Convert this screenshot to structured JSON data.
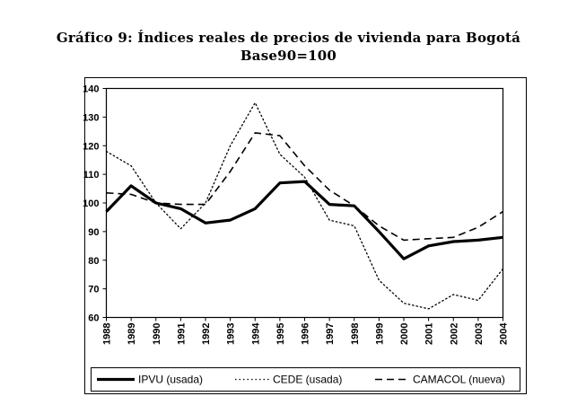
{
  "title_line1": "Gráfico 9: Índices reales de precios de vivienda para Bogotá",
  "title_line2": "Base90=100",
  "chart_data": {
    "type": "line",
    "title": "Gráfico 9: Índices reales de precios de vivienda para Bogotá",
    "subtitle": "Base90=100",
    "xlabel": "",
    "ylabel": "",
    "x": [
      "1988",
      "1989",
      "1990",
      "1991",
      "1992",
      "1993",
      "1994",
      "1995",
      "1996",
      "1997",
      "1998",
      "1999",
      "2000",
      "2001",
      "2002",
      "2003",
      "2004"
    ],
    "ylim": [
      60,
      140
    ],
    "yticks": [
      "60",
      "70",
      "80",
      "90",
      "100",
      "110",
      "120",
      "130",
      "140"
    ],
    "grid": false,
    "legend_position": "bottom",
    "series": [
      {
        "name": "IPVU (usada)",
        "style": "solid-thick",
        "color": "#000000",
        "values": [
          97,
          106,
          100,
          98,
          93,
          94,
          98,
          107,
          107.5,
          99.5,
          99,
          90,
          80.5,
          85,
          86.5,
          87,
          88
        ]
      },
      {
        "name": "CEDE (usada)",
        "style": "dotted",
        "color": "#000000",
        "values": [
          118,
          113,
          100,
          91,
          100,
          120,
          135,
          117,
          109,
          94,
          92,
          73,
          65,
          63,
          68,
          66,
          77
        ]
      },
      {
        "name": "CAMACOL (nueva)",
        "style": "dashed",
        "color": "#000000",
        "values": [
          103.5,
          103,
          100,
          99.5,
          99.5,
          111,
          124.5,
          123.5,
          113,
          104.5,
          99,
          92,
          87,
          87.5,
          88,
          91.5,
          97
        ]
      }
    ]
  }
}
